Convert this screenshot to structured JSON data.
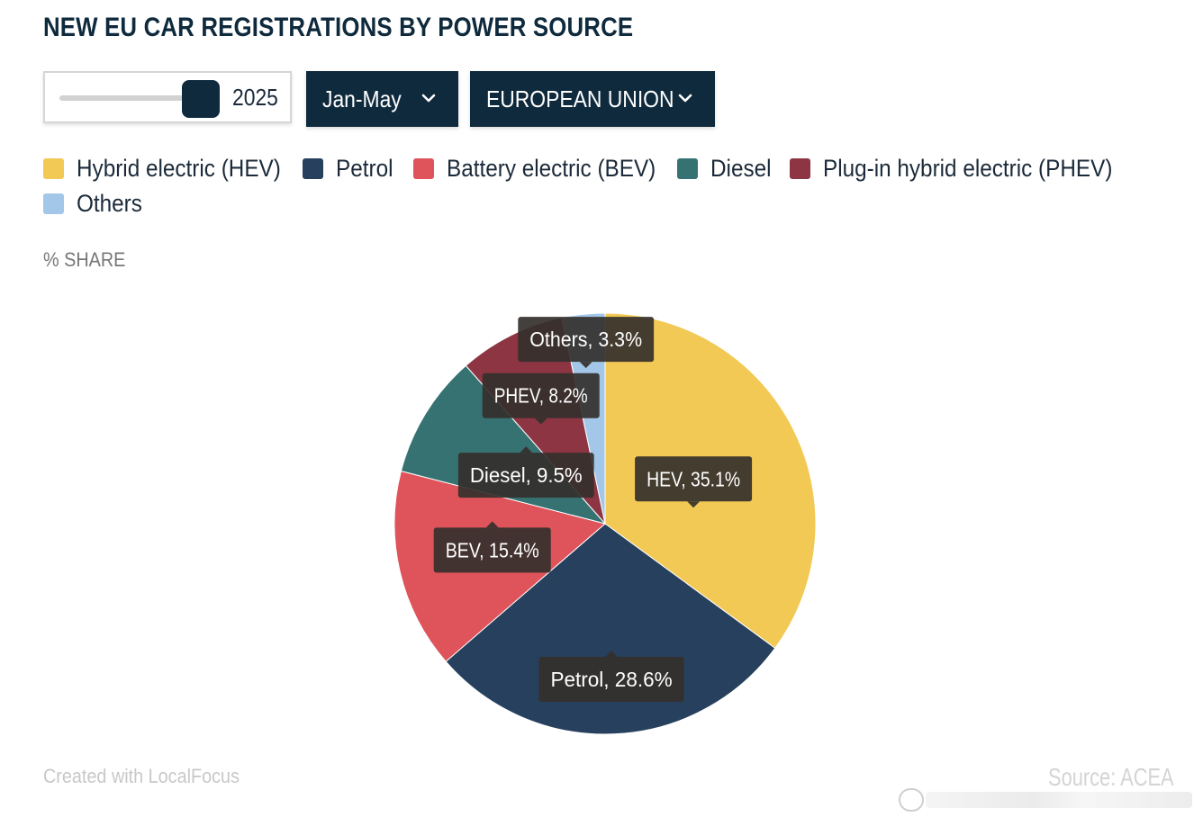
{
  "title": "NEW EU CAR REGISTRATIONS BY POWER SOURCE",
  "controls": {
    "year_value": "2025",
    "slider_position": 1.0,
    "period_label": "Jan-May",
    "region_label": "EUROPEAN UNION"
  },
  "legend": [
    {
      "label": "Hybrid electric (HEV)",
      "color": "#f2c955"
    },
    {
      "label": "Petrol",
      "color": "#26405e"
    },
    {
      "label": "Battery electric (BEV)",
      "color": "#df535a"
    },
    {
      "label": "Diesel",
      "color": "#377272"
    },
    {
      "label": "Plug-in hybrid electric (PHEV)",
      "color": "#8d3543"
    },
    {
      "label": "Others",
      "color": "#a3c7e8"
    }
  ],
  "unit_label": "% SHARE",
  "chart_data": {
    "type": "pie",
    "categories": [
      "HEV",
      "Petrol",
      "BEV",
      "Diesel",
      "PHEV",
      "Others"
    ],
    "values": [
      35.1,
      28.6,
      15.4,
      9.5,
      8.2,
      3.3
    ],
    "colors": [
      "#f2c955",
      "#26405e",
      "#df535a",
      "#377272",
      "#8d3543",
      "#a3c7e8"
    ],
    "data_labels": [
      "HEV, 35.1%",
      "Petrol, 28.6%",
      "BEV, 15.4%",
      "Diesel, 9.5%",
      "PHEV, 8.2%",
      "Others, 3.3%"
    ],
    "start_angle": "12 o'clock",
    "direction": "clockwise",
    "legend_position": "top"
  },
  "footer": {
    "credit": "Created with LocalFocus",
    "source": "Source: ACEA"
  }
}
